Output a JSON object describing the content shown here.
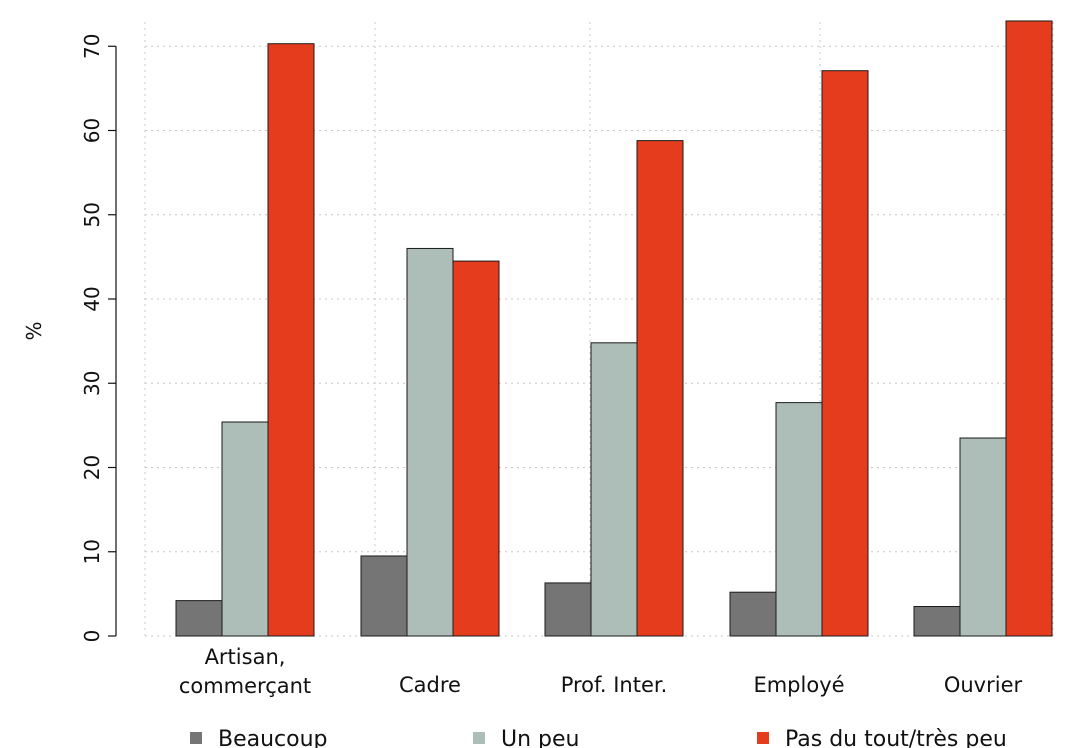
{
  "chart_data": {
    "type": "bar",
    "title": "",
    "xlabel": "",
    "ylabel": "%",
    "ylim": [
      0,
      73
    ],
    "yticks": [
      0,
      10,
      20,
      30,
      40,
      50,
      60,
      70
    ],
    "grid": true,
    "legend_position": "bottom",
    "categories": [
      [
        "Artisan,",
        "commerçant"
      ],
      [
        "Cadre"
      ],
      [
        "Prof. Inter."
      ],
      [
        "Employé"
      ],
      [
        "Ouvrier"
      ]
    ],
    "series": [
      {
        "name": "Beaucoup",
        "color": "#757575",
        "values": [
          4.2,
          9.5,
          6.3,
          5.2,
          3.5
        ]
      },
      {
        "name": "Un peu",
        "color": "#adbdb7",
        "values": [
          25.4,
          46.0,
          34.8,
          27.7,
          23.5
        ]
      },
      {
        "name": "Pas du tout/très peu",
        "color": "#e53c1e",
        "values": [
          70.3,
          44.5,
          58.8,
          67.1,
          73.0
        ]
      }
    ]
  }
}
